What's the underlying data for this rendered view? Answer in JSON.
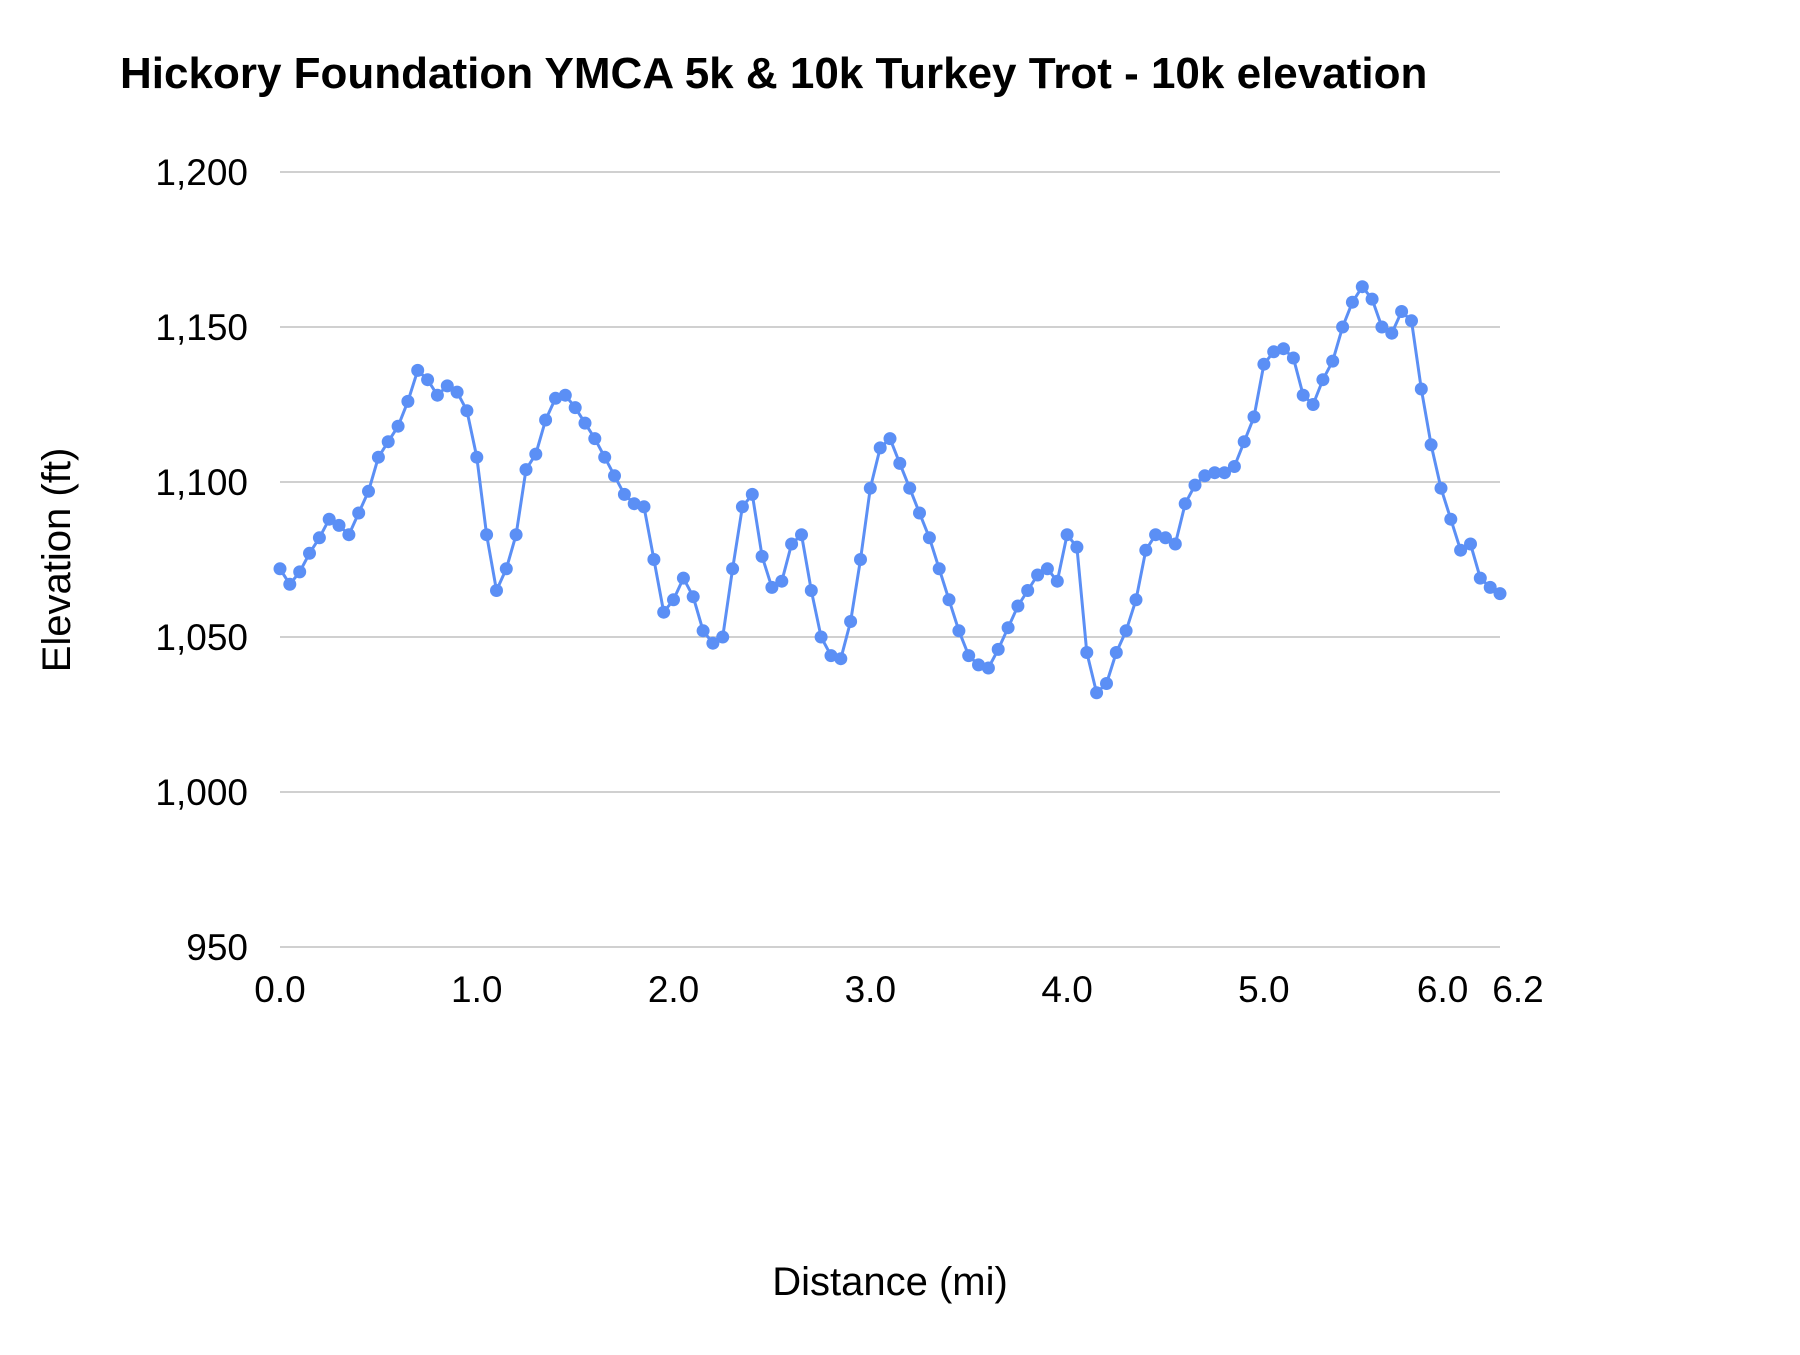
{
  "chart_data": {
    "type": "line",
    "title": "Hickory Foundation YMCA 5k & 10k Turkey Trot - 10k elevation",
    "xlabel": "Distance (mi)",
    "ylabel": "Elevation (ft)",
    "legend": "none",
    "grid": "horizontal",
    "marker": "circle",
    "xlim": [
      0,
      6.2
    ],
    "ylim": [
      950,
      1200
    ],
    "x_start": 0.0,
    "x_step": 0.05,
    "y_ticks": [
      {
        "v": 950,
        "label": "950"
      },
      {
        "v": 1000,
        "label": "1,000"
      },
      {
        "v": 1050,
        "label": "1,050"
      },
      {
        "v": 1100,
        "label": "1,100"
      },
      {
        "v": 1150,
        "label": "1,150"
      },
      {
        "v": 1200,
        "label": "1,200"
      }
    ],
    "x_ticks": [
      {
        "v": 0.0,
        "label": "0.0",
        "dx": 0
      },
      {
        "v": 1.0,
        "label": "1.0",
        "dx": 0
      },
      {
        "v": 2.0,
        "label": "2.0",
        "dx": 0
      },
      {
        "v": 3.0,
        "label": "3.0",
        "dx": 0
      },
      {
        "v": 4.0,
        "label": "4.0",
        "dx": 0
      },
      {
        "v": 5.0,
        "label": "5.0",
        "dx": 0
      },
      {
        "v": 6.0,
        "label": "6.0",
        "dx": -18
      },
      {
        "v": 6.2,
        "label": "6.2",
        "dx": 18
      }
    ],
    "colors": {
      "series": "#5b8ff5",
      "grid": "#d0d0d0",
      "text": "#000000",
      "background": "#ffffff"
    },
    "series": [
      {
        "name": "10k elevation",
        "color": "#5b8ff5",
        "values": [
          1072,
          1067,
          1071,
          1077,
          1082,
          1088,
          1086,
          1083,
          1090,
          1097,
          1108,
          1113,
          1118,
          1126,
          1136,
          1133,
          1128,
          1131,
          1129,
          1123,
          1108,
          1083,
          1065,
          1072,
          1083,
          1104,
          1109,
          1120,
          1127,
          1128,
          1124,
          1119,
          1114,
          1108,
          1102,
          1096,
          1093,
          1092,
          1075,
          1058,
          1062,
          1069,
          1063,
          1052,
          1048,
          1050,
          1072,
          1092,
          1096,
          1076,
          1066,
          1068,
          1080,
          1083,
          1065,
          1050,
          1044,
          1043,
          1055,
          1075,
          1098,
          1111,
          1114,
          1106,
          1098,
          1090,
          1082,
          1072,
          1062,
          1052,
          1044,
          1041,
          1040,
          1046,
          1053,
          1060,
          1065,
          1070,
          1072,
          1068,
          1083,
          1079,
          1045,
          1032,
          1035,
          1045,
          1052,
          1062,
          1078,
          1083,
          1082,
          1080,
          1093,
          1099,
          1102,
          1103,
          1103,
          1105,
          1113,
          1121,
          1138,
          1142,
          1143,
          1140,
          1128,
          1125,
          1133,
          1139,
          1150,
          1158,
          1163,
          1159,
          1150,
          1148,
          1155,
          1152,
          1130,
          1112,
          1098,
          1088,
          1078,
          1080,
          1069,
          1066,
          1064
        ]
      }
    ]
  }
}
